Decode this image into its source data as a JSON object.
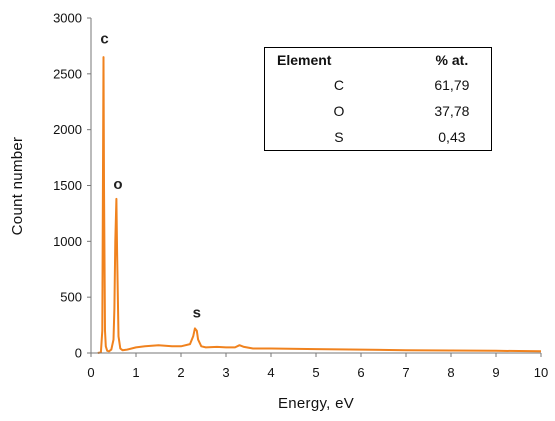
{
  "chart_data": {
    "type": "line",
    "xlabel": "Energy, eV",
    "ylabel": "Count number",
    "xlim": [
      0,
      10
    ],
    "ylim": [
      0,
      3000
    ],
    "xticks": [
      0,
      1,
      2,
      3,
      4,
      5,
      6,
      7,
      8,
      9,
      10
    ],
    "yticks": [
      0,
      500,
      1000,
      1500,
      2000,
      2500,
      3000
    ],
    "grid": false,
    "color": "#F0821E",
    "series": [
      {
        "x": [
          0.15,
          0.22,
          0.25,
          0.277,
          0.29,
          0.31,
          0.33,
          0.36,
          0.4,
          0.45,
          0.5,
          0.52,
          0.54,
          0.565,
          0.58,
          0.61,
          0.65,
          0.7,
          0.8,
          1.0,
          1.2,
          1.5,
          1.8,
          2.0,
          2.2,
          2.27,
          2.31,
          2.35,
          2.38,
          2.45,
          2.55,
          2.8,
          3.0,
          3.2,
          3.3,
          3.4,
          3.6,
          4.0,
          5.0,
          6.0,
          7.0,
          8.0,
          9.0,
          10.0
        ],
        "y": [
          0,
          5,
          200,
          2650,
          1500,
          200,
          60,
          20,
          15,
          30,
          120,
          400,
          1000,
          1380,
          900,
          150,
          40,
          25,
          30,
          50,
          60,
          70,
          60,
          60,
          80,
          150,
          220,
          200,
          120,
          60,
          50,
          55,
          50,
          50,
          70,
          55,
          40,
          40,
          35,
          30,
          25,
          22,
          20,
          15
        ]
      }
    ],
    "annotations": [
      {
        "text": "c",
        "x": 0.3,
        "y": 2770
      },
      {
        "text": "o",
        "x": 0.6,
        "y": 1470
      },
      {
        "text": "s",
        "x": 2.35,
        "y": 320
      }
    ],
    "table": {
      "headers": [
        "Element",
        "% at."
      ],
      "rows": [
        [
          "C",
          "61,79"
        ],
        [
          "O",
          "37,78"
        ],
        [
          "S",
          "0,43"
        ]
      ]
    }
  }
}
